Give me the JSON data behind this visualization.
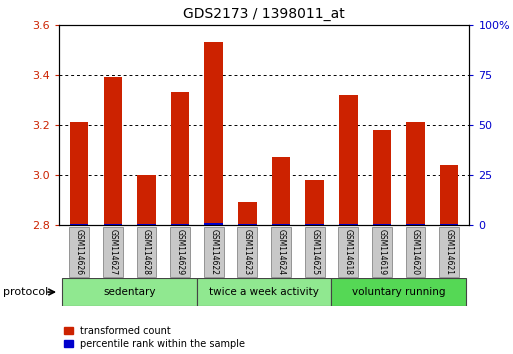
{
  "title": "GDS2173 / 1398011_at",
  "categories": [
    "GSM114626",
    "GSM114627",
    "GSM114628",
    "GSM114629",
    "GSM114622",
    "GSM114623",
    "GSM114624",
    "GSM114625",
    "GSM114618",
    "GSM114619",
    "GSM114620",
    "GSM114621"
  ],
  "red_values": [
    3.21,
    3.39,
    3.0,
    3.33,
    3.53,
    2.89,
    3.07,
    2.98,
    3.32,
    3.18,
    3.21,
    3.04
  ],
  "percentile_values": [
    12,
    12,
    10,
    12,
    14,
    10,
    11,
    10,
    12,
    11,
    12,
    10
  ],
  "baseline": 2.8,
  "ylim_left": [
    2.8,
    3.6
  ],
  "ylim_right": [
    0,
    100
  ],
  "yticks_left": [
    2.8,
    3.0,
    3.2,
    3.4,
    3.6
  ],
  "yticks_right": [
    0,
    25,
    50,
    75,
    100
  ],
  "groups": [
    {
      "label": "sedentary",
      "start": 0,
      "end": 4,
      "color": "#90e890"
    },
    {
      "label": "twice a week activity",
      "start": 4,
      "end": 8,
      "color": "#90e890"
    },
    {
      "label": "voluntary running",
      "start": 8,
      "end": 12,
      "color": "#55d855"
    }
  ],
  "red_color": "#cc2200",
  "blue_color": "#0000cc",
  "bar_width": 0.55,
  "group_box_color": "#c8c8c8",
  "legend_red_label": "transformed count",
  "legend_blue_label": "percentile rank within the sample",
  "protocol_label": "protocol",
  "left_label_color": "#cc2200",
  "right_label_color": "#0000cc",
  "blue_bar_height": 0.012
}
